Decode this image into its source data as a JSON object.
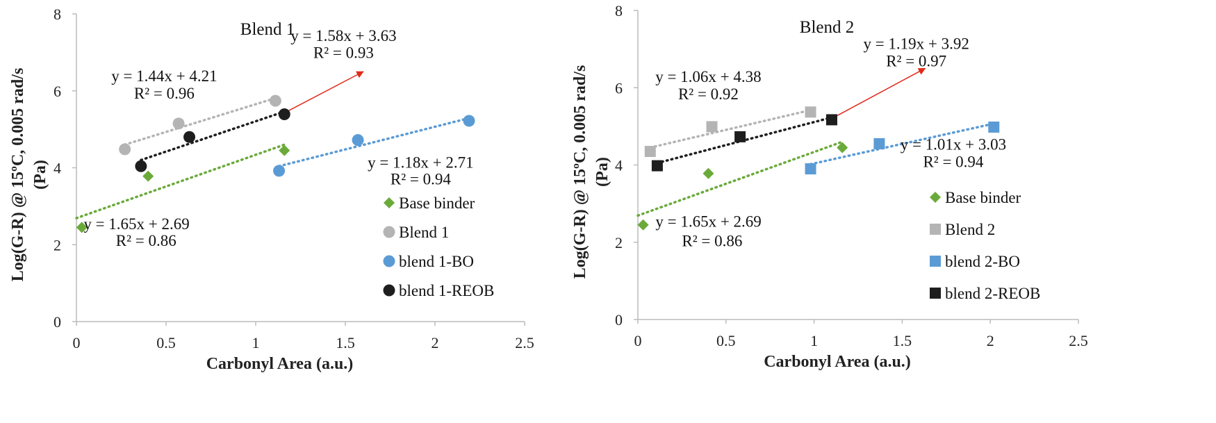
{
  "colors": {
    "base": "#6aaa3a",
    "blend": "#b4b4b4",
    "bo": "#5b9bd5",
    "reob": "#1e1e1e",
    "arrow": "#e02a1a",
    "axis": "#bbbbbb"
  },
  "chart_data": [
    {
      "type": "scatter",
      "title": "Blend 1",
      "xlabel": "Carbonyl Area (a.u.)",
      "ylabel_line1": "Log(G-R) @ 15ºC, 0.005 rad/s",
      "ylabel_line2": "(Pa)",
      "xlim": [
        0,
        2.5
      ],
      "ylim": [
        0,
        8
      ],
      "x_ticks": [
        "0",
        "0.5",
        "1",
        "1.5",
        "2",
        "2.5"
      ],
      "y_ticks": [
        "0",
        "2",
        "4",
        "6",
        "8"
      ],
      "marker": "circle",
      "series": [
        {
          "name": "Base binder",
          "key": "base",
          "marker": "diamond",
          "points": [
            [
              0.03,
              2.45
            ],
            [
              0.4,
              3.78
            ],
            [
              1.16,
              4.45
            ]
          ],
          "trend": {
            "x": [
              0.0,
              1.16
            ],
            "y": [
              2.69,
              4.6
            ]
          }
        },
        {
          "name": "Blend 1",
          "key": "blend",
          "points": [
            [
              0.27,
              4.48
            ],
            [
              0.57,
              5.15
            ],
            [
              1.11,
              5.74
            ]
          ],
          "trend": {
            "x": [
              0.27,
              1.11
            ],
            "y": [
              4.6,
              5.81
            ]
          }
        },
        {
          "name": "blend 1-BO",
          "key": "bo",
          "points": [
            [
              1.13,
              3.92
            ],
            [
              1.57,
              4.72
            ],
            [
              2.19,
              5.22
            ]
          ],
          "trend": {
            "x": [
              1.13,
              2.19
            ],
            "y": [
              4.04,
              5.29
            ]
          }
        },
        {
          "name": "blend 1-REOB",
          "key": "reob",
          "points": [
            [
              0.36,
              4.04
            ],
            [
              0.63,
              4.8
            ],
            [
              1.16,
              5.39
            ]
          ],
          "trend": {
            "x": [
              0.36,
              1.16
            ],
            "y": [
              4.2,
              5.46
            ]
          }
        }
      ],
      "arrow": {
        "from": [
          1.17,
          5.45
        ],
        "to": [
          1.6,
          6.5
        ]
      },
      "annotations": [
        {
          "text": "y = 1.58x + 3.63",
          "pos": [
            1.49,
            7.3
          ],
          "anchor": "middle"
        },
        {
          "text": "R² = 0.93",
          "pos": [
            1.49,
            6.85
          ],
          "anchor": "middle"
        },
        {
          "text": "y = 1.44x + 4.21",
          "pos": [
            0.49,
            6.25
          ],
          "anchor": "middle"
        },
        {
          "text": "R² = 0.96",
          "pos": [
            0.49,
            5.8
          ],
          "anchor": "middle"
        },
        {
          "text": "y = 1.18x + 2.71",
          "pos": [
            1.92,
            4.0
          ],
          "anchor": "middle"
        },
        {
          "text": "R² = 0.94",
          "pos": [
            1.92,
            3.57
          ],
          "anchor": "middle"
        },
        {
          "text": "y = 1.65x + 2.69",
          "pos": [
            0.04,
            2.4
          ],
          "anchor": "start"
        },
        {
          "text": "R² = 0.86",
          "pos": [
            0.22,
            1.97
          ],
          "anchor": "start"
        }
      ]
    },
    {
      "type": "scatter",
      "title": "Blend 2",
      "xlabel": "Carbonyl Area (a.u.)",
      "ylabel_line1": "Log(G-R) @ 15ºC, 0.005 rad/s",
      "ylabel_line2": "(Pa)",
      "xlim": [
        0,
        2.5
      ],
      "ylim": [
        0,
        8
      ],
      "x_ticks": [
        "0",
        "0.5",
        "1",
        "1.5",
        "2",
        "2.5"
      ],
      "y_ticks": [
        "0",
        "2",
        "4",
        "6",
        "8"
      ],
      "marker": "square",
      "series": [
        {
          "name": "Base binder",
          "key": "base",
          "marker": "diamond",
          "points": [
            [
              0.03,
              2.45
            ],
            [
              0.4,
              3.78
            ],
            [
              1.16,
              4.45
            ]
          ],
          "trend": {
            "x": [
              0.0,
              1.16
            ],
            "y": [
              2.69,
              4.6
            ]
          }
        },
        {
          "name": "Blend 2",
          "key": "blend",
          "points": [
            [
              0.07,
              4.35
            ],
            [
              0.42,
              4.99
            ],
            [
              0.98,
              5.37
            ]
          ],
          "trend": {
            "x": [
              0.07,
              0.98
            ],
            "y": [
              4.45,
              5.42
            ]
          }
        },
        {
          "name": "blend  2-BO",
          "key": "bo",
          "points": [
            [
              0.98,
              3.9
            ],
            [
              1.37,
              4.55
            ],
            [
              2.02,
              4.98
            ]
          ],
          "trend": {
            "x": [
              0.98,
              2.02
            ],
            "y": [
              4.02,
              5.07
            ]
          }
        },
        {
          "name": "blend  2-REOB",
          "key": "reob",
          "points": [
            [
              0.11,
              3.98
            ],
            [
              0.58,
              4.73
            ],
            [
              1.1,
              5.17
            ]
          ],
          "trend": {
            "x": [
              0.11,
              1.1
            ],
            "y": [
              4.05,
              5.23
            ]
          }
        }
      ],
      "arrow": {
        "from": [
          1.12,
          5.25
        ],
        "to": [
          1.63,
          6.5
        ]
      },
      "annotations": [
        {
          "text": "y = 1.19x + 3.92",
          "pos": [
            1.58,
            7.0
          ],
          "anchor": "middle"
        },
        {
          "text": "R² = 0.97",
          "pos": [
            1.58,
            6.55
          ],
          "anchor": "middle"
        },
        {
          "text": "y = 1.06x + 4.38",
          "pos": [
            0.4,
            6.15
          ],
          "anchor": "middle"
        },
        {
          "text": "R² = 0.92",
          "pos": [
            0.4,
            5.7
          ],
          "anchor": "middle"
        },
        {
          "text": "y = 1.01x + 3.03",
          "pos": [
            1.79,
            4.4
          ],
          "anchor": "middle"
        },
        {
          "text": "R² = 0.94",
          "pos": [
            1.79,
            3.95
          ],
          "anchor": "middle"
        },
        {
          "text": "y = 1.65x + 2.69",
          "pos": [
            0.1,
            2.4
          ],
          "anchor": "start"
        },
        {
          "text": "R² = 0.86",
          "pos": [
            0.25,
            1.9
          ],
          "anchor": "start"
        }
      ]
    }
  ]
}
